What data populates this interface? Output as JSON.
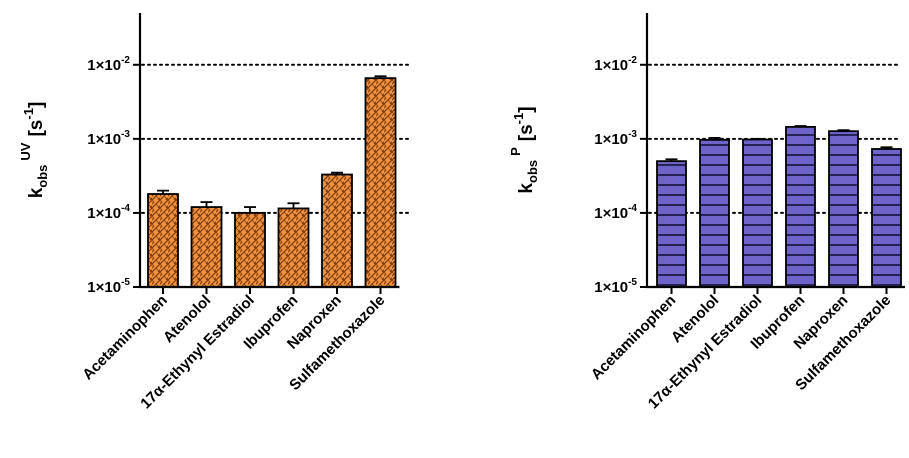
{
  "colors": {
    "left_bar": "#f2923f",
    "right_bar": "#6e63c8",
    "axis": "#000000",
    "grid": "#000000"
  },
  "chart_data": [
    {
      "type": "bar",
      "scale": "log",
      "ylim": [
        1e-05,
        0.05
      ],
      "grid": "dotted horizontal at 1e-4, 1e-3, 1e-2",
      "fill_pattern": "woven-hatch",
      "ylabel": {
        "main": "k",
        "sub": "obs",
        "sup": "UV",
        "unit": "[s",
        "unit_sup": "-1",
        "unit_close": "]"
      },
      "ticks": [
        {
          "value": 1e-05,
          "base": "1×10",
          "exp": "-5"
        },
        {
          "value": 0.0001,
          "base": "1×10",
          "exp": "-4"
        },
        {
          "value": 0.001,
          "base": "1×10",
          "exp": "-3"
        },
        {
          "value": 0.01,
          "base": "1×10",
          "exp": "-2"
        }
      ],
      "categories": [
        "Acetaminophen",
        "Atenolol",
        "17α-Ethynyl Estradiol",
        "Ibuprofen",
        "Naproxen",
        "Sulfamethoxazole"
      ],
      "values": [
        0.00018,
        0.00012,
        0.0001,
        0.000115,
        0.00033,
        0.0066
      ],
      "errors": [
        2e-05,
        2e-05,
        2e-05,
        2e-05,
        2e-05,
        0.0004
      ]
    },
    {
      "type": "bar",
      "scale": "log",
      "ylim": [
        1e-05,
        0.05
      ],
      "grid": "dotted horizontal at 1e-4, 1e-3, 1e-2",
      "fill_pattern": "horizontal-lines",
      "ylabel": {
        "main": "k",
        "sub": "obs",
        "sup": "P",
        "unit": "[s",
        "unit_sup": "-1",
        "unit_close": "]"
      },
      "ticks": [
        {
          "value": 1e-05,
          "base": "1×10",
          "exp": "-5"
        },
        {
          "value": 0.0001,
          "base": "1×10",
          "exp": "-4"
        },
        {
          "value": 0.001,
          "base": "1×10",
          "exp": "-3"
        },
        {
          "value": 0.01,
          "base": "1×10",
          "exp": "-2"
        }
      ],
      "categories": [
        "Acetaminophen",
        "Atenolol",
        "17α-Ethynyl Estradiol",
        "Ibuprofen",
        "Naproxen",
        "Sulfamethoxazole"
      ],
      "values": [
        0.0005,
        0.00097,
        0.00098,
        0.00145,
        0.00127,
        0.00073
      ],
      "errors": [
        3e-05,
        6e-05,
        2e-05,
        4e-05,
        4e-05,
        4e-05
      ]
    }
  ]
}
